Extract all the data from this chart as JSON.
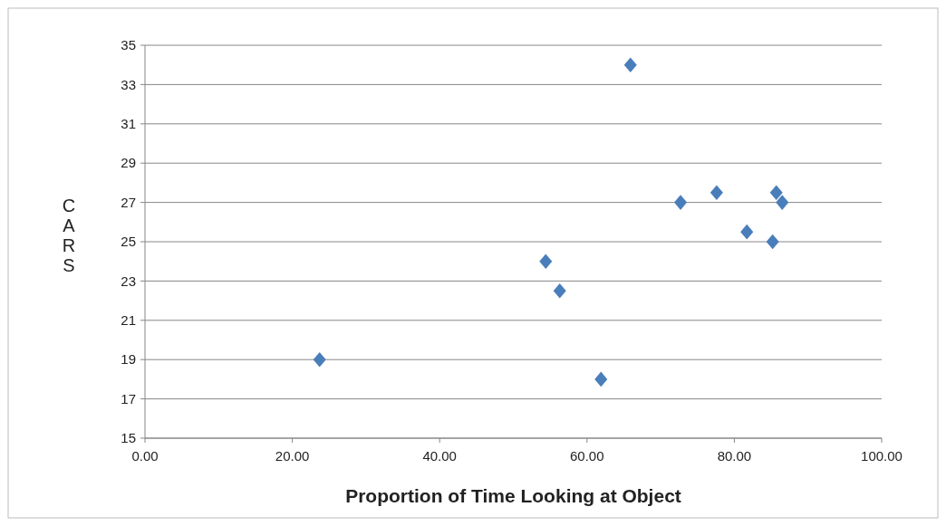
{
  "chart_data": {
    "type": "scatter",
    "xlabel": "Proportion of Time Looking at Object",
    "ylabel": "CARS",
    "x": [
      23.7,
      54.4,
      56.3,
      61.9,
      65.9,
      72.7,
      77.6,
      81.7,
      85.2,
      85.7,
      86.5
    ],
    "values": [
      19,
      24,
      22.5,
      18,
      34,
      27,
      27.5,
      25.5,
      25,
      27.5,
      27
    ],
    "color": "#4a7ebb",
    "marker": "diamond",
    "grid": "y",
    "xlim": [
      0,
      100
    ],
    "xticks": [
      {
        "value": 0,
        "label": "0.00"
      },
      {
        "value": 20,
        "label": "20.00"
      },
      {
        "value": 40,
        "label": "40.00"
      },
      {
        "value": 60,
        "label": "60.00"
      },
      {
        "value": 80,
        "label": "80.00"
      },
      {
        "value": 100,
        "label": "100.00"
      }
    ],
    "ylim": [
      15,
      35
    ],
    "yticks": [
      15,
      17,
      19,
      21,
      23,
      25,
      27,
      29,
      31,
      33,
      35
    ]
  }
}
